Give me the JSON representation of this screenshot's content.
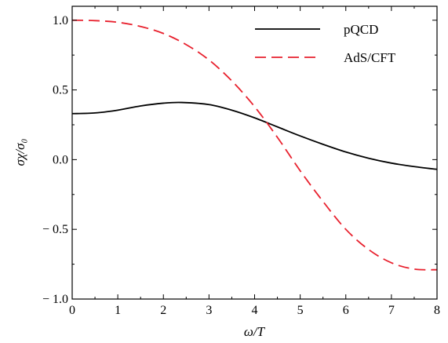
{
  "chart_data": {
    "type": "line",
    "title": "",
    "xlabel": "ω/T",
    "ylabel": "σχ/σ₀",
    "xlim": [
      0,
      8
    ],
    "ylim": [
      -1.0,
      1.1
    ],
    "xticks": [
      0,
      1,
      2,
      3,
      4,
      5,
      6,
      7,
      8
    ],
    "xtick_labels": [
      "0",
      "1",
      "2",
      "3",
      "4",
      "5",
      "6",
      "7",
      "8"
    ],
    "yticks": [
      -1.0,
      -0.5,
      0.0,
      0.5,
      1.0
    ],
    "ytick_labels": [
      "− 1.0",
      "− 0.5",
      "0.0",
      "0.5",
      "1.0"
    ],
    "grid": false,
    "legend_position": "top-right",
    "series": [
      {
        "name": "pQCD",
        "color": "#000000",
        "style": "solid",
        "x": [
          0,
          0.5,
          1,
          1.5,
          2,
          2.4,
          3,
          3.5,
          4,
          4.5,
          5,
          5.5,
          6,
          6.5,
          7,
          7.5,
          8
        ],
        "y": [
          0.33,
          0.335,
          0.355,
          0.385,
          0.405,
          0.41,
          0.395,
          0.355,
          0.3,
          0.235,
          0.17,
          0.11,
          0.055,
          0.01,
          -0.025,
          -0.05,
          -0.07
        ]
      },
      {
        "name": "AdS/CFT",
        "color": "#e8212e",
        "style": "dashed",
        "x": [
          0,
          0.5,
          1,
          1.5,
          2,
          2.5,
          3,
          3.5,
          4,
          4.5,
          5,
          5.5,
          6,
          6.5,
          7,
          7.5,
          8
        ],
        "y": [
          1.0,
          0.997,
          0.985,
          0.955,
          0.905,
          0.825,
          0.715,
          0.565,
          0.38,
          0.16,
          -0.08,
          -0.3,
          -0.5,
          -0.645,
          -0.74,
          -0.785,
          -0.79
        ]
      }
    ]
  }
}
